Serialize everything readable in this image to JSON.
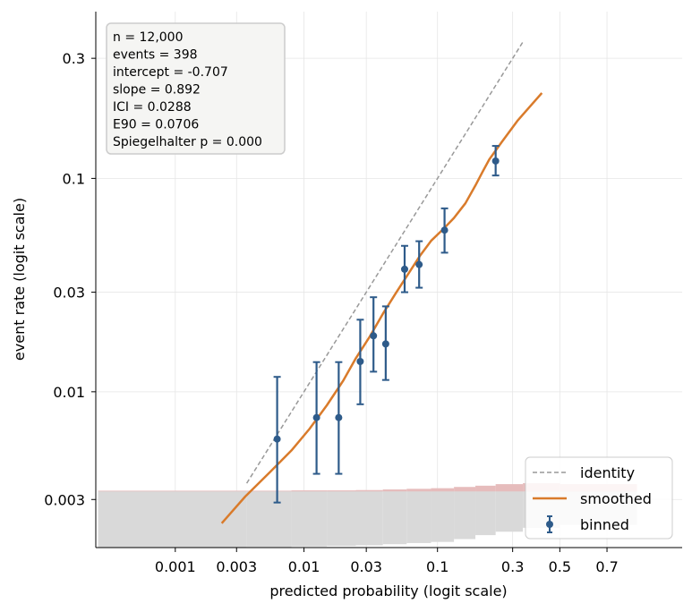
{
  "chart_data": {
    "type": "scatter",
    "xlabel": "predicted probability (logit scale)",
    "ylabel": "event rate (logit scale)",
    "xscale": "logit",
    "yscale": "logit",
    "xlim": [
      0.00024,
      0.9
    ],
    "ylim": [
      0.00175,
      0.42
    ],
    "x_ticks": [
      {
        "value": 0.001,
        "label": "0.001"
      },
      {
        "value": 0.003,
        "label": "0.003"
      },
      {
        "value": 0.01,
        "label": "0.01"
      },
      {
        "value": 0.03,
        "label": "0.03"
      },
      {
        "value": 0.1,
        "label": "0.1"
      },
      {
        "value": 0.3,
        "label": "0.3"
      },
      {
        "value": 0.5,
        "label": "0.5"
      },
      {
        "value": 0.7,
        "label": "0.7"
      }
    ],
    "y_ticks": [
      {
        "value": 0.003,
        "label": "0.003"
      },
      {
        "value": 0.01,
        "label": "0.01"
      },
      {
        "value": 0.03,
        "label": "0.03"
      },
      {
        "value": 0.1,
        "label": "0.1"
      },
      {
        "value": 0.3,
        "label": "0.3"
      }
    ],
    "grid": true,
    "stats_box": {
      "position": "top-left",
      "lines": [
        "n = 12,000",
        "events = 398",
        "intercept = -0.707",
        "slope = 0.892",
        "ICI = 0.0288",
        "E90 = 0.0706",
        "Spiegelhalter p = 0.000"
      ]
    },
    "legend": {
      "position": "bottom-right",
      "entries": [
        {
          "label": "identity",
          "style": "dashed",
          "color": "#999999"
        },
        {
          "label": "smoothed",
          "style": "line",
          "color": "#d97b2b"
        },
        {
          "label": "binned",
          "style": "errorbar",
          "color": "#2e5b8a"
        }
      ]
    },
    "series": [
      {
        "name": "identity",
        "kind": "line",
        "x": [
          0.0036,
          0.34
        ],
        "y": [
          0.0036,
          0.34
        ]
      },
      {
        "name": "smoothed",
        "kind": "line",
        "x": [
          0.0023,
          0.0035,
          0.0055,
          0.008,
          0.011,
          0.015,
          0.02,
          0.025,
          0.032,
          0.04,
          0.05,
          0.062,
          0.075,
          0.09,
          0.11,
          0.13,
          0.155,
          0.18,
          0.2,
          0.22,
          0.26,
          0.32,
          0.37,
          0.42
        ],
        "y": [
          0.0023,
          0.0031,
          0.0041,
          0.0052,
          0.0066,
          0.0086,
          0.0113,
          0.0145,
          0.0185,
          0.0237,
          0.0297,
          0.0368,
          0.0445,
          0.0522,
          0.0592,
          0.0665,
          0.0775,
          0.093,
          0.107,
          0.121,
          0.143,
          0.176,
          0.2,
          0.225
        ]
      },
      {
        "name": "binned",
        "kind": "errorbar",
        "points": [
          {
            "x": 0.0062,
            "y": 0.0059,
            "lo": 0.0029,
            "hi": 0.0118
          },
          {
            "x": 0.0125,
            "y": 0.0075,
            "lo": 0.004,
            "hi": 0.0139
          },
          {
            "x": 0.0185,
            "y": 0.0075,
            "lo": 0.004,
            "hi": 0.0139
          },
          {
            "x": 0.027,
            "y": 0.014,
            "lo": 0.0087,
            "hi": 0.0222
          },
          {
            "x": 0.034,
            "y": 0.0186,
            "lo": 0.0125,
            "hi": 0.0284
          },
          {
            "x": 0.042,
            "y": 0.017,
            "lo": 0.0114,
            "hi": 0.0257
          },
          {
            "x": 0.058,
            "y": 0.0385,
            "lo": 0.03,
            "hi": 0.0495
          },
          {
            "x": 0.074,
            "y": 0.0405,
            "lo": 0.0315,
            "hi": 0.052
          },
          {
            "x": 0.112,
            "y": 0.0585,
            "lo": 0.046,
            "hi": 0.0735
          },
          {
            "x": 0.24,
            "y": 0.119,
            "lo": 0.103,
            "hi": 0.138
          }
        ]
      }
    ],
    "histogram": {
      "non_event_color": "#d9d9d9",
      "event_color": "#e6bcbc",
      "x_edges": [
        0.00025,
        0.0036,
        0.008,
        0.015,
        0.025,
        0.04,
        0.06,
        0.09,
        0.13,
        0.18,
        0.24,
        0.34,
        0.5,
        0.8
      ],
      "non_event_fraction": [
        1.0,
        0.99,
        0.98,
        0.97,
        0.96,
        0.94,
        0.92,
        0.9,
        0.85,
        0.78,
        0.72,
        0.65,
        0.6
      ],
      "event_fraction": [
        0.01,
        0.01,
        0.02,
        0.02,
        0.03,
        0.05,
        0.07,
        0.09,
        0.13,
        0.17,
        0.22,
        0.25,
        0.22
      ]
    },
    "colors": {
      "binned": "#2e5b8a",
      "smoothed": "#d97b2b",
      "identity": "#999999"
    }
  }
}
